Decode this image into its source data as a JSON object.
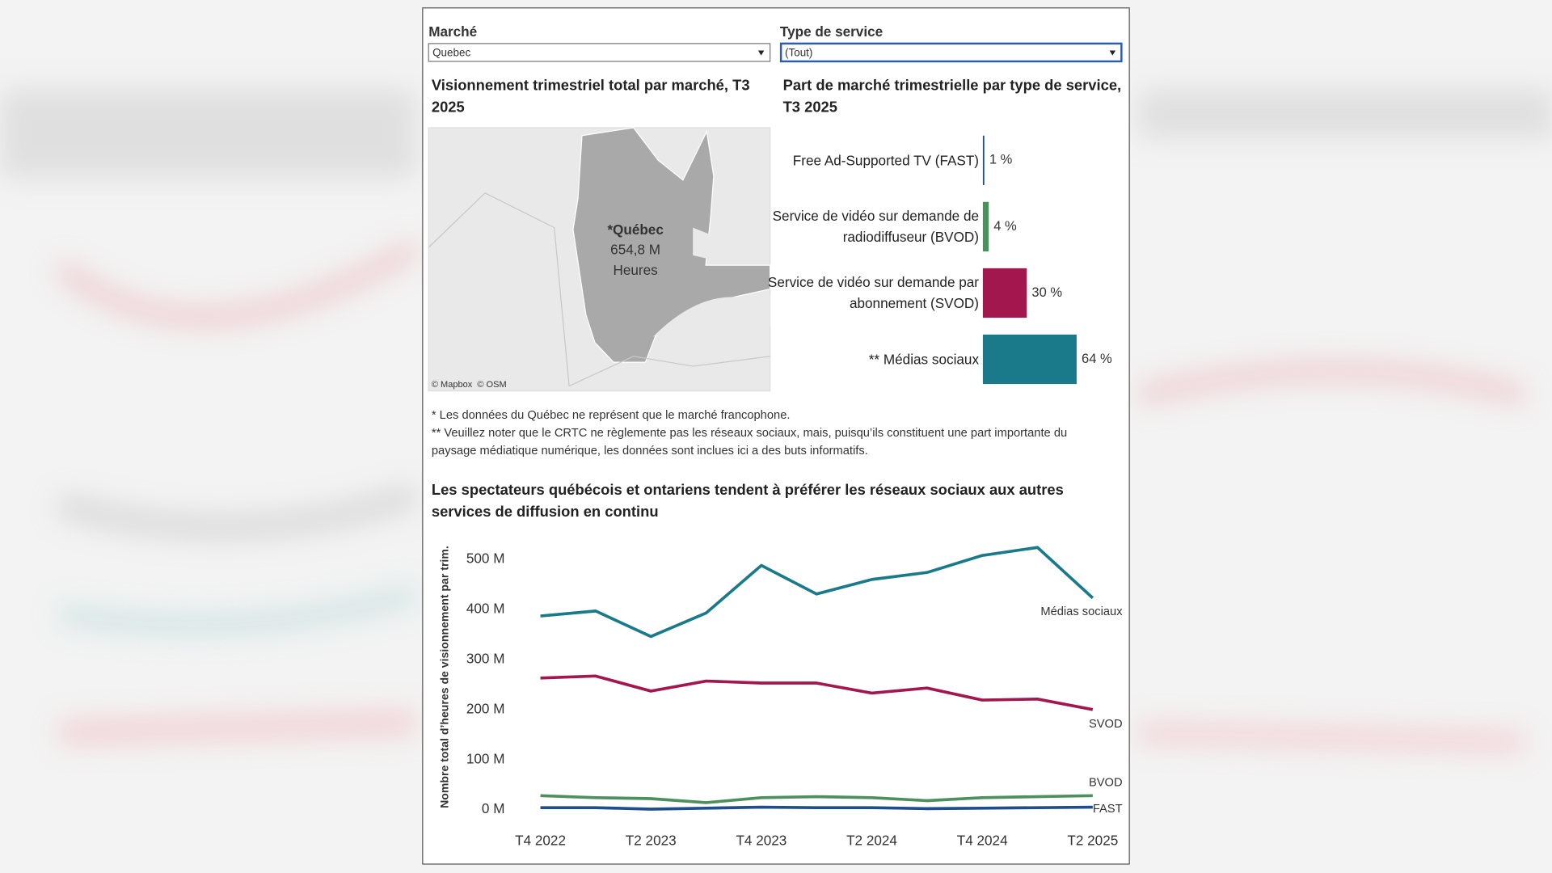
{
  "filters": [
    {
      "label": "Marché",
      "value": "Quebec"
    },
    {
      "label": "Type de service",
      "value": "(Tout)"
    }
  ],
  "map": {
    "title": "Visionnement trimestriel total par marché, T3 2025",
    "region": "*Québec",
    "amount": "654,8 M",
    "unit": "Heures",
    "attribution": "© Mapbox  © OSM"
  },
  "notes": [
    "* Les données du Québec ne représent que le marché francophone.",
    "** Veuillez noter que le CRTC ne règlemente pas les réseaux sociaux, mais, puisqu’ils constituent une part importante du paysage médiatique numérique, les données sont inclues ici a des buts informatifs."
  ],
  "chart_data": [
    {
      "type": "hbar",
      "title": "Part de marché trimestrielle par type de service, T3 2025",
      "categories": [
        "Free Ad-Supported TV (FAST)",
        "Service de vidéo sur demande de radiodiffuseur (BVOD)",
        "Service de vidéo sur demande par abonnement (SVOD)",
        "** Médias sociaux"
      ],
      "values": [
        1,
        4,
        30,
        64
      ],
      "value_labels": [
        "1 %",
        "4 %",
        "30 %",
        "64 %"
      ],
      "colors": [
        "#1f4e8c",
        "#4e8f5e",
        "#a3174f",
        "#1a7a8a"
      ]
    },
    {
      "type": "line",
      "title": "Les spectateurs québécois et ontariens tendent à préférer les réseaux sociaux aux autres services de diffusion en continu",
      "y_label": "Nombre total d’heures de visionnement par trim.",
      "categories": [
        "T4 2022",
        null,
        "T2 2023",
        null,
        "T4 2023",
        null,
        "T2 2024",
        null,
        "T4 2024",
        null,
        "T2 2025"
      ],
      "ylim": [
        0,
        540
      ],
      "yticks": [
        {
          "value": 0,
          "label": "0 M"
        },
        {
          "value": 100,
          "label": "100 M"
        },
        {
          "value": 200,
          "label": "200 M"
        },
        {
          "value": 300,
          "label": "300 M"
        },
        {
          "value": 400,
          "label": "400 M"
        },
        {
          "value": 500,
          "label": "500 M"
        }
      ],
      "series": [
        {
          "name": "Médias sociaux",
          "color": "#1a7a8a",
          "values": [
            387,
            397,
            346,
            393,
            488,
            431,
            460,
            474,
            508,
            524,
            423
          ]
        },
        {
          "name": "SVOD",
          "color": "#a3174f",
          "values": [
            263,
            267,
            237,
            257,
            253,
            253,
            233,
            243,
            219,
            221,
            200
          ]
        },
        {
          "name": "BVOD",
          "color": "#4e8f5e",
          "values": [
            28,
            24,
            22,
            14,
            24,
            26,
            24,
            18,
            24,
            26,
            28
          ]
        },
        {
          "name": "FAST",
          "color": "#1f4e8c",
          "values": [
            4,
            4,
            1,
            3,
            5,
            4,
            4,
            2,
            3,
            4,
            5
          ]
        }
      ]
    }
  ]
}
